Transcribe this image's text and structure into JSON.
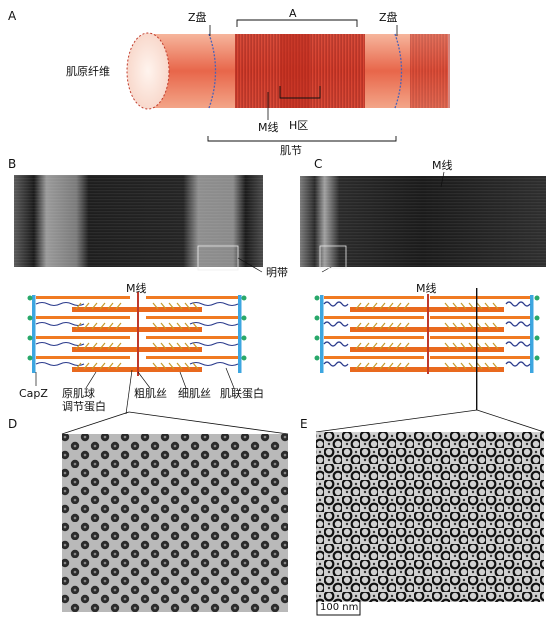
{
  "panels": {
    "a": "A",
    "b": "B",
    "c": "C",
    "d": "D",
    "e": "E"
  },
  "panel_a": {
    "z_disc_left": "Z盘",
    "a_band": "A",
    "z_disc_right": "Z盘",
    "myofibril": "肌原纤维",
    "m_line": "M线",
    "h_zone": "H区",
    "sarcomere": "肌节"
  },
  "panel_b": {
    "i_band": "明带"
  },
  "panel_c": {
    "m_line": "M线"
  },
  "schematic_left": {
    "m_line": "M线",
    "capz": "CapZ",
    "tropomodulin": "原肌球\n调节蛋白",
    "thick_filament": "粗肌丝",
    "thin_filament": "细肌丝",
    "titin": "肌联蛋白"
  },
  "schematic_right": {
    "m_line": "M线"
  },
  "scale_bar": "100 nm",
  "colors": {
    "z_disc": "#3da6e0",
    "thick": "#f07a22",
    "thin": "#c79a2a",
    "titin": "#2a3a8c",
    "capz": "#29a86a",
    "muscle": "#d6442f"
  }
}
